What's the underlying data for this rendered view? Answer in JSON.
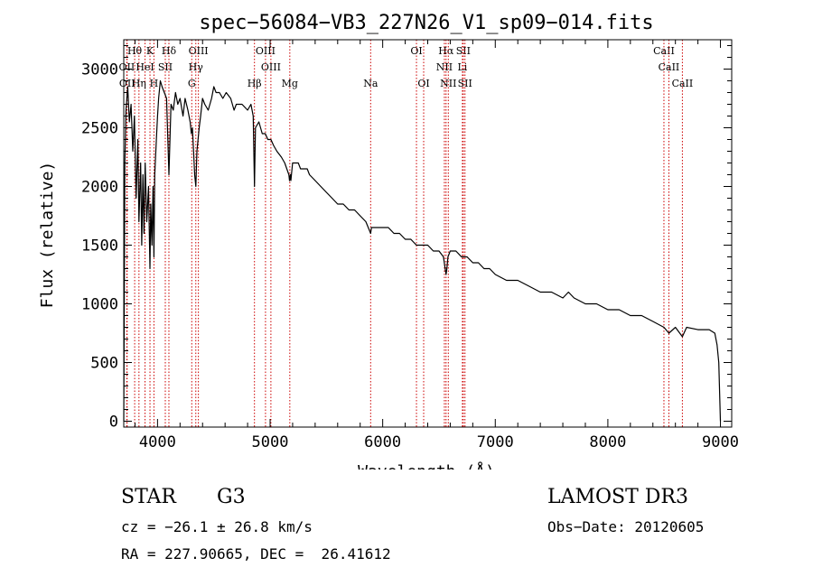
{
  "chart_data": {
    "type": "line",
    "title": "spec−56084−VB3_227N26_V1_sp09−014.fits",
    "xlabel": "Wavelength (Å)",
    "ylabel": "Flux (relative)",
    "xlim": [
      3700,
      9100
    ],
    "ylim": [
      -50,
      3250
    ],
    "x_ticks": [
      4000,
      5000,
      6000,
      7000,
      8000,
      9000
    ],
    "y_ticks": [
      0,
      500,
      1000,
      1500,
      2000,
      2500,
      3000
    ],
    "series": [
      {
        "name": "flux",
        "x": [
          3700,
          3705,
          3710,
          3720,
          3735,
          3750,
          3765,
          3780,
          3795,
          3810,
          3825,
          3835,
          3850,
          3860,
          3870,
          3880,
          3890,
          3905,
          3920,
          3933,
          3940,
          3950,
          3960,
          3968,
          3975,
          3990,
          4000,
          4010,
          4025,
          4040,
          4060,
          4080,
          4101,
          4120,
          4140,
          4160,
          4180,
          4200,
          4226,
          4245,
          4270,
          4290,
          4300,
          4310,
          4320,
          4330,
          4340,
          4350,
          4370,
          4383,
          4400,
          4420,
          4450,
          4480,
          4500,
          4520,
          4550,
          4580,
          4610,
          4650,
          4680,
          4700,
          4750,
          4800,
          4830,
          4850,
          4861,
          4870,
          4900,
          4930,
          4957,
          4980,
          5007,
          5030,
          5060,
          5100,
          5130,
          5167,
          5172,
          5180,
          5184,
          5200,
          5250,
          5270,
          5300,
          5330,
          5350,
          5400,
          5450,
          5500,
          5550,
          5600,
          5650,
          5700,
          5750,
          5800,
          5850,
          5893,
          5900,
          5950,
          6000,
          6050,
          6100,
          6150,
          6200,
          6250,
          6300,
          6350,
          6400,
          6450,
          6500,
          6540,
          6555,
          6563,
          6570,
          6580,
          6600,
          6650,
          6700,
          6750,
          6800,
          6850,
          6900,
          6950,
          7000,
          7100,
          7200,
          7300,
          7400,
          7500,
          7600,
          7650,
          7700,
          7800,
          7900,
          8000,
          8100,
          8200,
          8300,
          8400,
          8498,
          8542,
          8600,
          8662,
          8700,
          8800,
          8900,
          8950,
          8970,
          8985,
          9000
        ],
        "y": [
          0,
          1100,
          2200,
          2650,
          2850,
          2550,
          2700,
          2300,
          2600,
          1900,
          2400,
          1700,
          2200,
          1500,
          2100,
          1600,
          2200,
          1700,
          2000,
          1300,
          1850,
          1500,
          2000,
          1400,
          2100,
          2400,
          2600,
          2750,
          2900,
          2850,
          2800,
          2750,
          2100,
          2700,
          2650,
          2800,
          2700,
          2750,
          2600,
          2750,
          2650,
          2550,
          2450,
          2500,
          2300,
          2100,
          2000,
          2300,
          2500,
          2600,
          2750,
          2700,
          2650,
          2750,
          2850,
          2800,
          2800,
          2750,
          2800,
          2750,
          2650,
          2700,
          2700,
          2650,
          2700,
          2600,
          2000,
          2500,
          2550,
          2450,
          2450,
          2400,
          2400,
          2350,
          2300,
          2250,
          2200,
          2100,
          2050,
          2100,
          2050,
          2200,
          2200,
          2150,
          2150,
          2150,
          2100,
          2050,
          2000,
          1950,
          1900,
          1850,
          1850,
          1800,
          1800,
          1750,
          1700,
          1600,
          1650,
          1650,
          1650,
          1650,
          1600,
          1600,
          1550,
          1550,
          1500,
          1500,
          1500,
          1450,
          1450,
          1400,
          1300,
          1250,
          1300,
          1400,
          1450,
          1450,
          1400,
          1400,
          1350,
          1350,
          1300,
          1300,
          1250,
          1200,
          1200,
          1150,
          1100,
          1100,
          1050,
          1100,
          1050,
          1000,
          1000,
          950,
          950,
          900,
          900,
          850,
          800,
          750,
          800,
          720,
          800,
          780,
          780,
          750,
          650,
          500,
          0
        ]
      }
    ],
    "lines": [
      {
        "label": "Hθ",
        "x": 3797,
        "row": 0
      },
      {
        "label": "K",
        "x": 3933,
        "row": 0
      },
      {
        "label": "Hδ",
        "x": 4101,
        "row": 0
      },
      {
        "label": "OIII",
        "x": 4363,
        "row": 0
      },
      {
        "label": "OIII",
        "x": 4959,
        "row": 0
      },
      {
        "label": "OI",
        "x": 6300,
        "row": 0
      },
      {
        "label": "Hα",
        "x": 6563,
        "row": 0
      },
      {
        "label": "SII",
        "x": 6716,
        "row": 0
      },
      {
        "label": "CaII",
        "x": 8498,
        "row": 0
      },
      {
        "label": "OII",
        "x": 3727,
        "row": 1
      },
      {
        "label": "HeI",
        "x": 3889,
        "row": 1
      },
      {
        "label": "SII",
        "x": 4069,
        "row": 1
      },
      {
        "label": "Hγ",
        "x": 4340,
        "row": 1
      },
      {
        "label": "OIII",
        "x": 5007,
        "row": 1
      },
      {
        "label": "NII",
        "x": 6548,
        "row": 1
      },
      {
        "label": "Li",
        "x": 6708,
        "row": 1
      },
      {
        "label": "CaII",
        "x": 8542,
        "row": 1
      },
      {
        "label": "OII",
        "x": 3730,
        "row": 2
      },
      {
        "label": "Hη",
        "x": 3835,
        "row": 2
      },
      {
        "label": "H",
        "x": 3968,
        "row": 2
      },
      {
        "label": "G",
        "x": 4304,
        "row": 2
      },
      {
        "label": "Hβ",
        "x": 4861,
        "row": 2
      },
      {
        "label": "Mg",
        "x": 5175,
        "row": 2
      },
      {
        "label": "Na",
        "x": 5893,
        "row": 2
      },
      {
        "label": "OI",
        "x": 6364,
        "row": 2
      },
      {
        "label": "NII",
        "x": 6583,
        "row": 2
      },
      {
        "label": "SII",
        "x": 6731,
        "row": 2
      },
      {
        "label": "CaII",
        "x": 8662,
        "row": 2
      }
    ],
    "line_color": "#cc0000"
  },
  "info": {
    "class": "STAR",
    "subclass": "G3",
    "survey": "LAMOST DR3",
    "cz": "cz = −26.1 ± 26.8 km/s",
    "obs_date": "Obs−Date: 20120605",
    "radec": "RA = 227.90665, DEC =  26.41612"
  }
}
